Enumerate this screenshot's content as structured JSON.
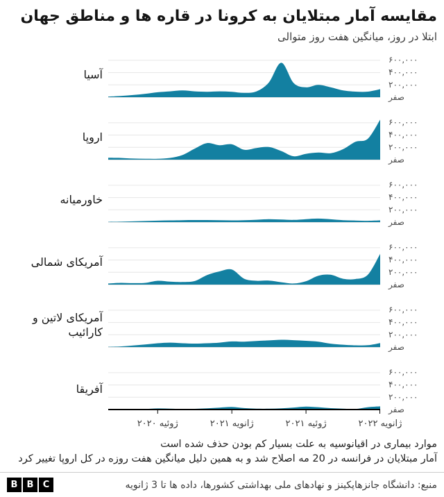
{
  "header": {
    "title": "مقایسه آمار مبتلایان به کرونا در قاره ها و مناطق جهان",
    "subtitle": "ابتلا در روز، میانگین هفت روز متوالی"
  },
  "chart_data": {
    "type": "area",
    "layout": "small-multiples",
    "color": "#1380A1",
    "grid_color": "#e6e6e6",
    "baseline_color": "#cccccc",
    "axis_color": "#000000",
    "ylim": [
      0,
      700000
    ],
    "yticks": [
      {
        "value": 600000,
        "label": "۶۰۰,۰۰۰"
      },
      {
        "value": 400000,
        "label": "۴۰۰,۰۰۰"
      },
      {
        "value": 200000,
        "label": "۲۰۰,۰۰۰"
      },
      {
        "value": 0,
        "label": "صفر"
      }
    ],
    "x": [
      "2020-03",
      "2020-04",
      "2020-05",
      "2020-06",
      "2020-07",
      "2020-08",
      "2020-09",
      "2020-10",
      "2020-11",
      "2020-12",
      "2021-01",
      "2021-02",
      "2021-03",
      "2021-04",
      "2021-05",
      "2021-06",
      "2021-07",
      "2021-08",
      "2021-09",
      "2021-10",
      "2021-11",
      "2021-12",
      "2022-01"
    ],
    "xticks": [
      {
        "x": "2020-07",
        "label": "ژوئیه ۲۰۲۰"
      },
      {
        "x": "2021-01",
        "label": "ژانویه ۲۰۲۱"
      },
      {
        "x": "2021-07",
        "label": "ژوئیه ۲۰۲۱"
      },
      {
        "x": "2022-01",
        "label": "ژانویه ۲۰۲۲"
      }
    ],
    "series": [
      {
        "name": "آسیا",
        "values": [
          10000,
          20000,
          35000,
          55000,
          80000,
          95000,
          110000,
          95000,
          88000,
          95000,
          88000,
          70000,
          95000,
          240000,
          560000,
          230000,
          160000,
          200000,
          160000,
          110000,
          90000,
          90000,
          130000
        ]
      },
      {
        "name": "اروپا",
        "values": [
          30000,
          28000,
          18000,
          14000,
          14000,
          28000,
          75000,
          180000,
          270000,
          235000,
          250000,
          160000,
          190000,
          205000,
          140000,
          55000,
          95000,
          115000,
          105000,
          170000,
          290000,
          340000,
          650000
        ]
      },
      {
        "name": "خاورمیانه",
        "values": [
          4000,
          7000,
          12000,
          18000,
          24000,
          28000,
          32000,
          34000,
          34000,
          30000,
          28000,
          32000,
          38000,
          48000,
          42000,
          36000,
          48000,
          58000,
          46000,
          32000,
          26000,
          22000,
          28000
        ]
      },
      {
        "name": "آمریکای شمالی",
        "values": [
          18000,
          28000,
          24000,
          28000,
          62000,
          48000,
          42000,
          58000,
          155000,
          215000,
          245000,
          95000,
          62000,
          66000,
          38000,
          18000,
          55000,
          145000,
          160000,
          95000,
          90000,
          160000,
          500000
        ]
      },
      {
        "name": "آمریکای لاتین و کارائیب",
        "values": [
          4000,
          10000,
          25000,
          42000,
          62000,
          72000,
          62000,
          56000,
          62000,
          72000,
          92000,
          88000,
          98000,
          108000,
          118000,
          112000,
          102000,
          88000,
          55000,
          38000,
          28000,
          30000,
          65000
        ]
      },
      {
        "name": "آفریقا",
        "values": [
          2000,
          3000,
          5000,
          9000,
          18000,
          14000,
          9000,
          11000,
          19000,
          32000,
          42000,
          24000,
          14000,
          13000,
          19000,
          33000,
          48000,
          38000,
          23000,
          13000,
          9000,
          38000,
          52000
        ]
      }
    ]
  },
  "footnotes": [
    "موارد بیماری در اقیانوسیه به علت بسیار کم بودن حذف شده است",
    "آمار مبتلایان در فرانسه در 20 مه اصلاح شد و به همین دلیل میانگین هفت روزه در کل اروپا تغییر کرد"
  ],
  "source": "منبع: دانشگاه جانزهاپکینز و نهادهای ملی بهداشتی کشورها، داده ها تا 3 ژانویه",
  "logo_letters": [
    "B",
    "B",
    "C"
  ]
}
